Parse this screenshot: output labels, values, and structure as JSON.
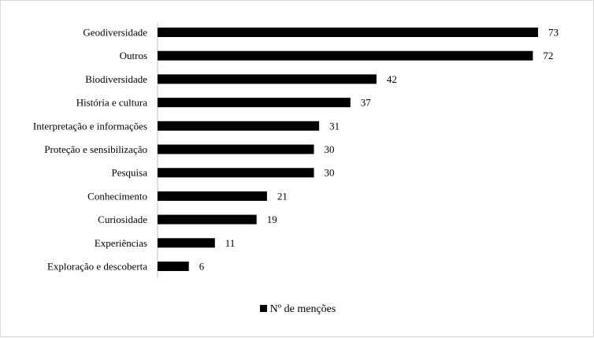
{
  "chart_data": {
    "type": "bar",
    "orientation": "horizontal",
    "categories": [
      "Geodiversidade",
      "Outros",
      "Biodiversidade",
      "História e cultura",
      "Interpretação e informações",
      "Proteção e sensibilização",
      "Pesquisa",
      "Conhecimento",
      "Curiosidade",
      "Experiências",
      "Exploração e descoberta"
    ],
    "series": [
      {
        "name": "Nº de menções",
        "color": "#000000",
        "values": [
          73,
          72,
          42,
          37,
          31,
          30,
          30,
          21,
          19,
          11,
          6
        ]
      }
    ],
    "xlim": [
      0,
      75
    ],
    "grid": false,
    "legend": "bottom"
  }
}
